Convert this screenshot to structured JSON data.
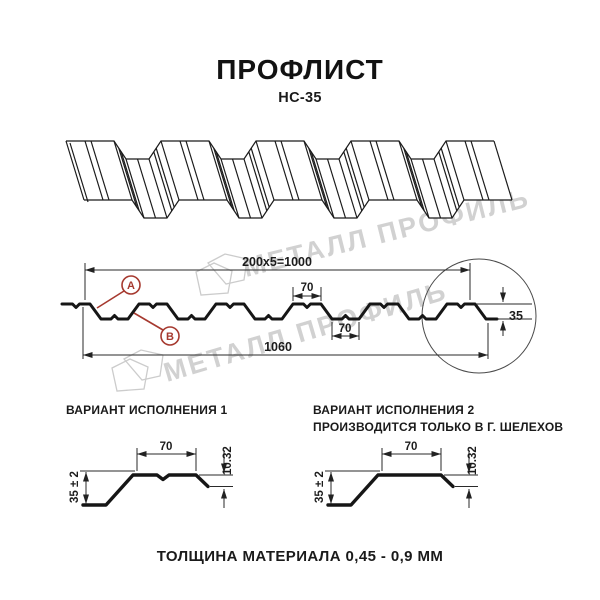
{
  "header": {
    "title": "ПРОФЛИСТ",
    "subtitle": "НС-35"
  },
  "watermark": {
    "text": "МЕТАЛЛ ПРОФИЛЬ",
    "color": "#c9c9c9"
  },
  "cross_section": {
    "dim_width_ribs": "200x5=1000",
    "dim_rib_top": "70",
    "dim_rib_bottom": "70",
    "dim_full_width": "1060",
    "dim_height": "35",
    "point_a": "A",
    "point_b": "B"
  },
  "variants": {
    "v1": {
      "title": "ВАРИАНТ ИСПОЛНЕНИЯ 1",
      "dim_flat": "70",
      "dim_lip": "10.32",
      "dim_height": "35 ± 2"
    },
    "v2": {
      "title": "ВАРИАНТ ИСПОЛНЕНИЯ 2",
      "subtitle": "ПРОИЗВОДИТСЯ ТОЛЬКО В Г. ШЕЛЕХОВ",
      "dim_flat": "70",
      "dim_lip": "10.32",
      "dim_height": "35 ± 2"
    }
  },
  "footer": {
    "note": "ТОЛЩИНА МАТЕРИАЛА 0,45 - 0,9 ММ"
  },
  "colors": {
    "line": "#1a1a1a",
    "dim": "#2a2a2a",
    "accent_red": "#a6392f",
    "watermark": "#c9c9c9"
  }
}
